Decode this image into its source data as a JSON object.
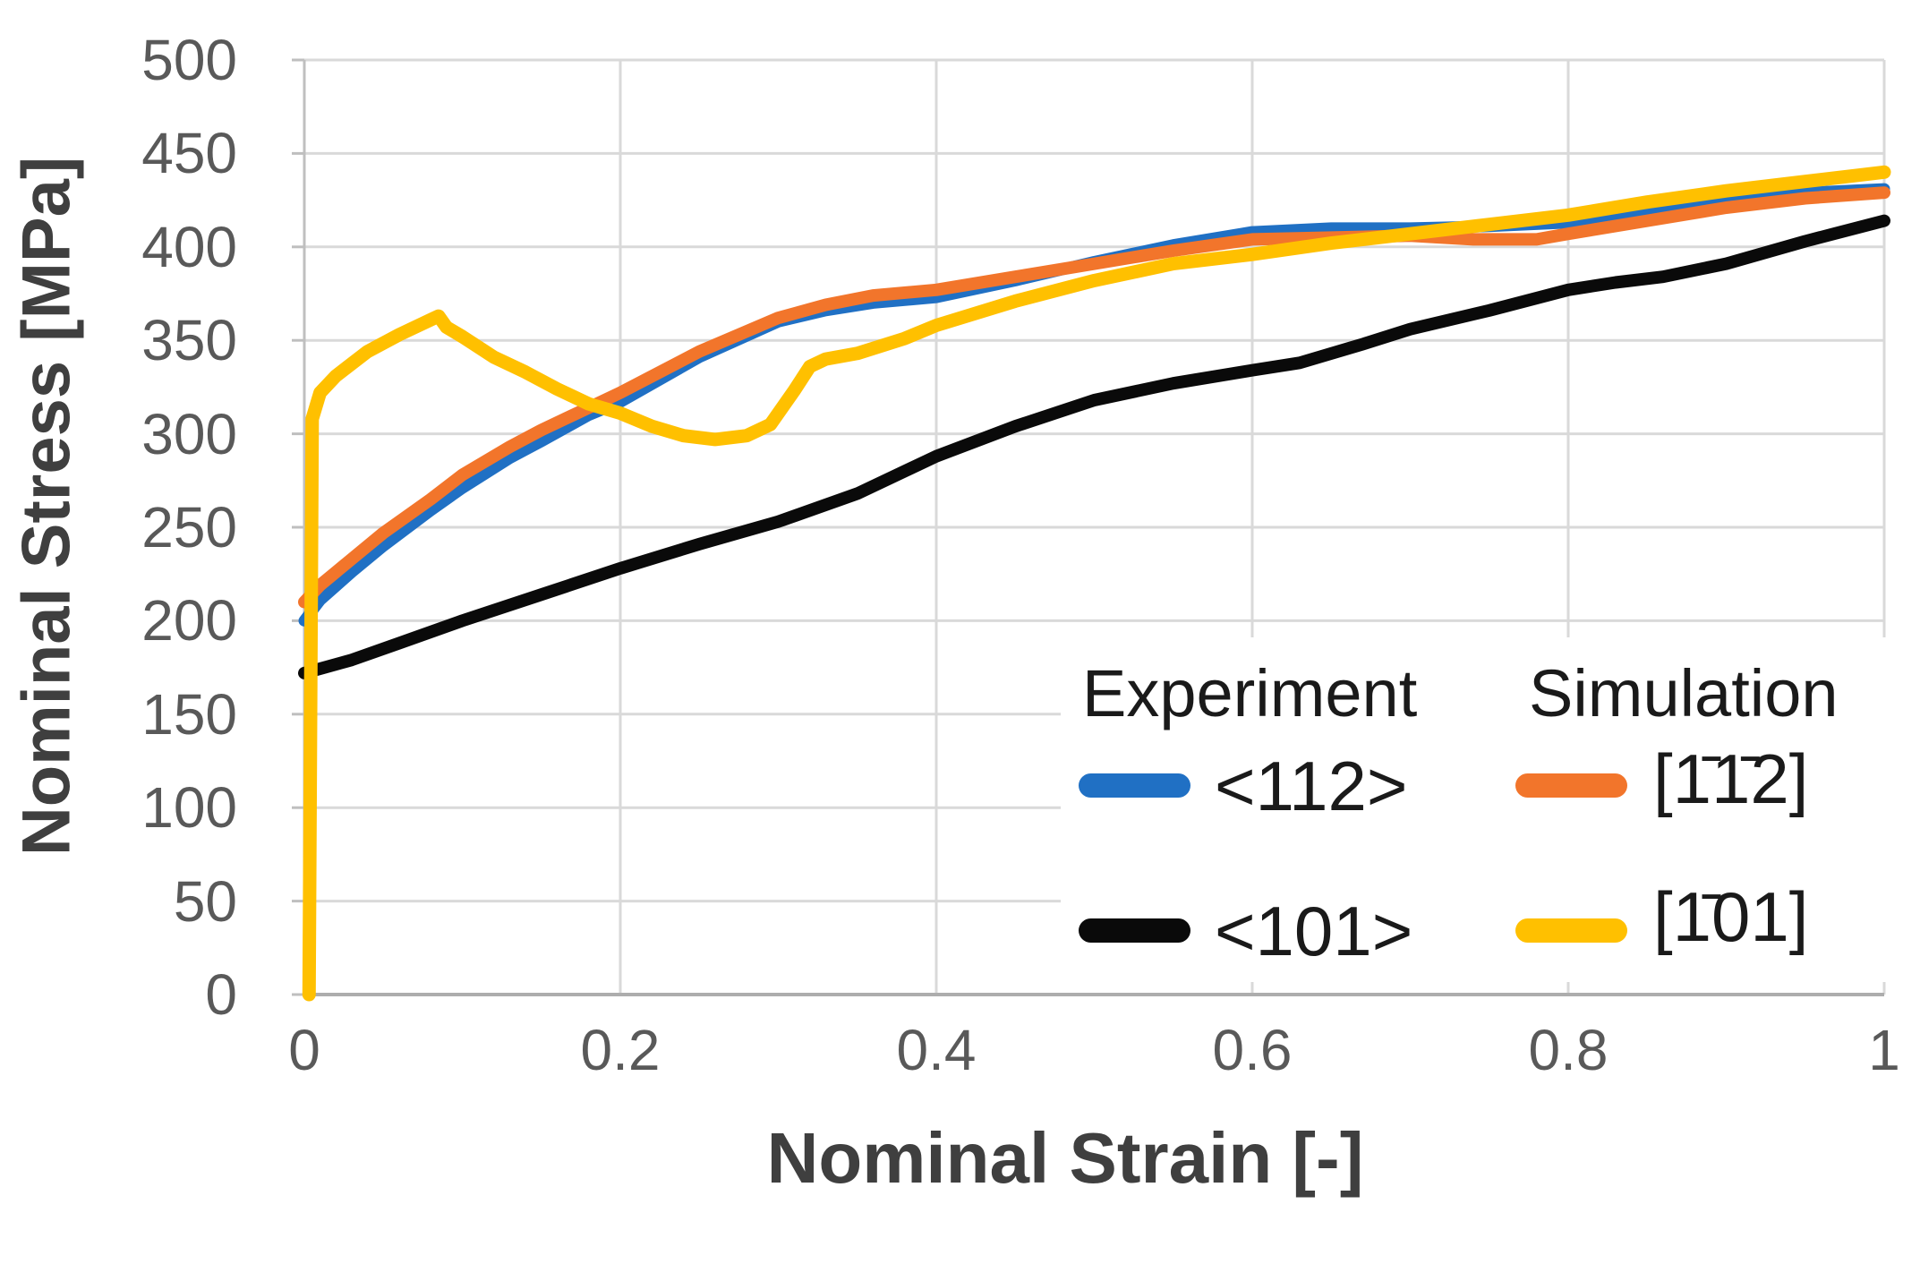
{
  "figure": {
    "background": "#FFFFFF"
  },
  "chart_data": {
    "type": "line",
    "title": "",
    "xlabel": "Nominal Strain [-]",
    "ylabel": "Nominal Stress [MPa]",
    "xlim": [
      0,
      1
    ],
    "ylim": [
      0,
      500
    ],
    "grid": true,
    "grid_color": "#D9D9D9",
    "axis_color": "#BFBFBF",
    "tick_text_color": "#595959",
    "xticks": {
      "values": [
        0,
        0.2,
        0.4,
        0.6,
        0.8,
        1
      ],
      "labels": [
        "0",
        "0.2",
        "0.4",
        "0.6",
        "0.8",
        "1"
      ]
    },
    "yticks": {
      "values": [
        0,
        50,
        100,
        150,
        200,
        250,
        300,
        350,
        400,
        450,
        500
      ],
      "labels": [
        "0",
        "50",
        "100",
        "150",
        "200",
        "250",
        "300",
        "350",
        "400",
        "450",
        "500"
      ]
    },
    "legend": {
      "position": "inside-lower-right",
      "columns": [
        {
          "header": "Experiment",
          "items": [
            {
              "label": "<112>",
              "series": "exp-112"
            },
            {
              "label": "<101>",
              "series": "exp-101"
            }
          ]
        },
        {
          "header": "Simulation",
          "items": [
            {
              "label": "[1̄1̄2]",
              "series": "sim-112"
            },
            {
              "label": "[1̄01]",
              "series": "sim-101"
            }
          ]
        }
      ]
    },
    "series": [
      {
        "id": "exp-112",
        "name": "Experiment <112>",
        "color": "#2070C4",
        "width": 13,
        "points": [
          [
            0,
            200
          ],
          [
            0.01,
            211
          ],
          [
            0.03,
            226
          ],
          [
            0.05,
            240
          ],
          [
            0.08,
            259
          ],
          [
            0.1,
            271
          ],
          [
            0.13,
            287
          ],
          [
            0.15,
            296
          ],
          [
            0.18,
            310
          ],
          [
            0.2,
            317
          ],
          [
            0.25,
            341
          ],
          [
            0.3,
            360
          ],
          [
            0.33,
            366
          ],
          [
            0.36,
            370
          ],
          [
            0.4,
            373
          ],
          [
            0.45,
            382
          ],
          [
            0.5,
            392
          ],
          [
            0.55,
            401
          ],
          [
            0.6,
            408
          ],
          [
            0.65,
            410
          ],
          [
            0.7,
            410
          ],
          [
            0.75,
            411
          ],
          [
            0.8,
            413
          ],
          [
            0.85,
            419
          ],
          [
            0.9,
            425
          ],
          [
            0.95,
            429
          ],
          [
            1.0,
            431
          ]
        ]
      },
      {
        "id": "exp-101",
        "name": "Experiment <101>",
        "color": "#0A0A0A",
        "width": 14,
        "points": [
          [
            0,
            172
          ],
          [
            0.03,
            179
          ],
          [
            0.06,
            188
          ],
          [
            0.1,
            200
          ],
          [
            0.15,
            214
          ],
          [
            0.2,
            228
          ],
          [
            0.25,
            241
          ],
          [
            0.3,
            253
          ],
          [
            0.35,
            268
          ],
          [
            0.4,
            288
          ],
          [
            0.45,
            304
          ],
          [
            0.5,
            318
          ],
          [
            0.55,
            327
          ],
          [
            0.6,
            334
          ],
          [
            0.63,
            338
          ],
          [
            0.67,
            348
          ],
          [
            0.7,
            356
          ],
          [
            0.75,
            366
          ],
          [
            0.8,
            377
          ],
          [
            0.83,
            381
          ],
          [
            0.86,
            384
          ],
          [
            0.9,
            391
          ],
          [
            0.95,
            403
          ],
          [
            1.0,
            414
          ]
        ]
      },
      {
        "id": "sim-112",
        "name": "Simulation [1̄1̄2]",
        "color": "#F2752B",
        "width": 14,
        "points": [
          [
            0,
            210
          ],
          [
            0.01,
            219
          ],
          [
            0.03,
            233
          ],
          [
            0.05,
            247
          ],
          [
            0.08,
            265
          ],
          [
            0.1,
            278
          ],
          [
            0.13,
            293
          ],
          [
            0.15,
            302
          ],
          [
            0.18,
            314
          ],
          [
            0.2,
            322
          ],
          [
            0.25,
            344
          ],
          [
            0.3,
            362
          ],
          [
            0.33,
            369
          ],
          [
            0.36,
            374
          ],
          [
            0.4,
            377
          ],
          [
            0.45,
            384
          ],
          [
            0.5,
            391
          ],
          [
            0.55,
            398
          ],
          [
            0.6,
            404
          ],
          [
            0.65,
            405
          ],
          [
            0.7,
            406
          ],
          [
            0.74,
            404
          ],
          [
            0.78,
            404
          ],
          [
            0.8,
            407
          ],
          [
            0.85,
            414
          ],
          [
            0.9,
            421
          ],
          [
            0.95,
            426
          ],
          [
            1.0,
            429
          ]
        ]
      },
      {
        "id": "sim-101",
        "name": "Simulation [1̄01]",
        "color": "#FFC000",
        "width": 15,
        "points": [
          [
            0.003,
            0
          ],
          [
            0.005,
            308
          ],
          [
            0.01,
            322
          ],
          [
            0.02,
            331
          ],
          [
            0.04,
            344
          ],
          [
            0.06,
            353
          ],
          [
            0.08,
            361
          ],
          [
            0.085,
            363
          ],
          [
            0.09,
            357
          ],
          [
            0.1,
            352
          ],
          [
            0.12,
            341
          ],
          [
            0.14,
            333
          ],
          [
            0.16,
            324
          ],
          [
            0.18,
            316
          ],
          [
            0.2,
            311
          ],
          [
            0.22,
            304
          ],
          [
            0.24,
            299
          ],
          [
            0.26,
            297
          ],
          [
            0.28,
            299
          ],
          [
            0.295,
            305
          ],
          [
            0.31,
            323
          ],
          [
            0.32,
            336
          ],
          [
            0.33,
            340
          ],
          [
            0.35,
            343
          ],
          [
            0.38,
            351
          ],
          [
            0.4,
            358
          ],
          [
            0.45,
            371
          ],
          [
            0.5,
            382
          ],
          [
            0.55,
            391
          ],
          [
            0.6,
            396
          ],
          [
            0.65,
            402
          ],
          [
            0.7,
            407
          ],
          [
            0.75,
            412
          ],
          [
            0.8,
            417
          ],
          [
            0.85,
            424
          ],
          [
            0.9,
            430
          ],
          [
            0.95,
            435
          ],
          [
            1.0,
            440
          ]
        ]
      }
    ]
  }
}
